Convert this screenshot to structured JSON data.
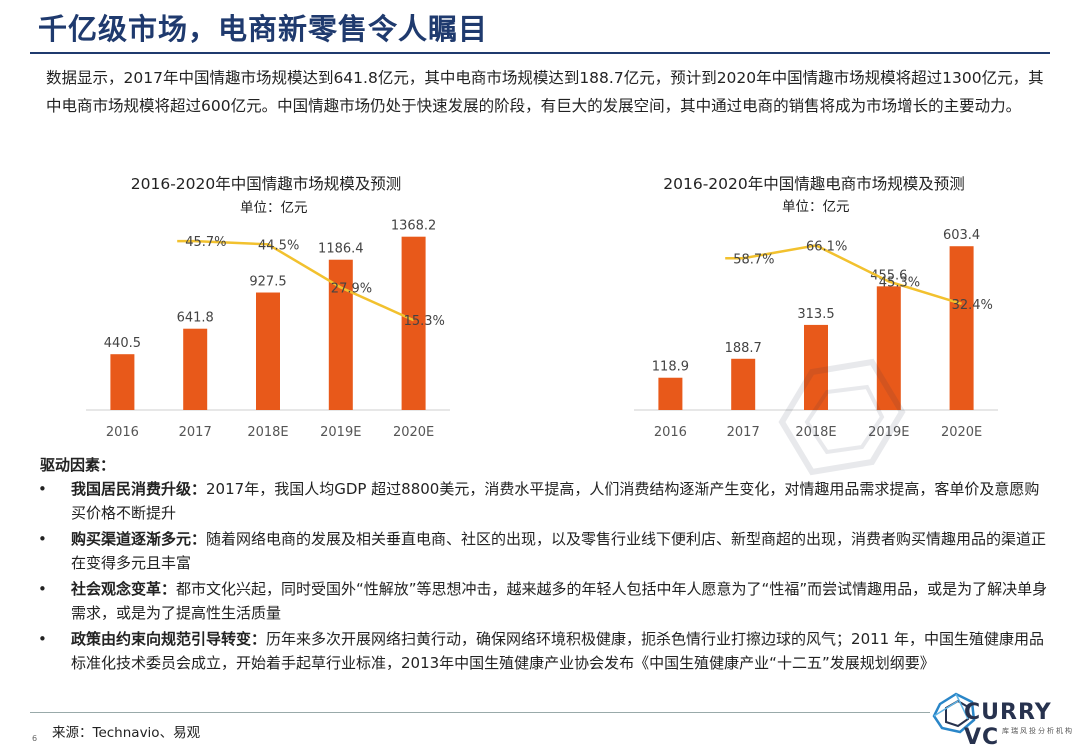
{
  "page": {
    "title": "千亿级市场，电商新零售令人瞩目",
    "intro": "数据显示，2017年中国情趣市场规模达到641.8亿元，其中电商市场规模达到188.7亿元，预计到2020年中国情趣市场规模将超过1300亿元，其中电商市场规模将超过600亿元。中国情趣市场仍处于快速发展的阶段，有巨大的发展空间，其中通过电商的销售将成为市场增长的主要动力。",
    "drivers_heading": "驱动因素：",
    "drivers": [
      {
        "bullet": "•",
        "title": "我国居民消费升级：",
        "text": "2017年，我国人均GDP 超过8800美元，消费水平提高，人们消费结构逐渐产生变化，对情趣用品需求提高，客单价及意愿购买价格不断提升"
      },
      {
        "bullet": "•",
        "title": "购买渠道逐渐多元：",
        "text": "随着网络电商的发展及相关垂直电商、社区的出现，以及零售行业线下便利店、新型商超的出现，消费者购买情趣用品的渠道正在变得多元且丰富"
      },
      {
        "bullet": "•",
        "title": "社会观念变革：",
        "text": "都市文化兴起，同时受国外“性解放”等思想冲击，越来越多的年轻人包括中年人愿意为了“性福”而尝试情趣用品，或是为了解决单身需求，或是为了提高性生活质量"
      },
      {
        "bullet": "•",
        "title": "政策由约束向规范引导转变：",
        "text": "历年来多次开展网络扫黄行动，确保网络环境积极健康，扼杀色情行业打擦边球的风气；2011 年，中国生殖健康用品标准化技术委员会成立，开始着手起草行业标准，2013年中国生殖健康产业协会发布《中国生殖健康产业“十二五”发展规划纲要》"
      }
    ],
    "source": "来源：Technavio、易观",
    "page_number": "6",
    "logo_text": "CURRY VC",
    "logo_sub": "库瑞风投分析机构"
  },
  "colors": {
    "bar": "#e8591a",
    "line": "#f2c12e",
    "title": "#1f3a6e"
  },
  "chart_data": [
    {
      "type": "bar",
      "title": "2016-2020年中国情趣市场规模及预测",
      "unit": "单位：亿元",
      "categories": [
        "2016",
        "2017",
        "2018E",
        "2019E",
        "2020E"
      ],
      "values": [
        440.5,
        641.8,
        927.5,
        1186.4,
        1368.2
      ],
      "value_labels": [
        "440.5",
        "641.8",
        "927.5",
        "1186.4",
        "1368.2"
      ],
      "growth": [
        null,
        45.7,
        44.5,
        27.9,
        15.3
      ],
      "growth_labels": [
        "",
        "45.7%",
        "44.5%",
        "27.9%",
        "15.3%"
      ],
      "ylim": [
        0,
        1500
      ],
      "growth_range": [
        0,
        50
      ],
      "grid": false,
      "legend": "none"
    },
    {
      "type": "bar",
      "title": "2016-2020年中国情趣电商市场规模及预测",
      "unit": "单位：亿元",
      "categories": [
        "2016",
        "2017",
        "2018E",
        "2019E",
        "2020E"
      ],
      "values": [
        118.9,
        188.7,
        313.5,
        455.6,
        603.4
      ],
      "value_labels": [
        "118.9",
        "188.7",
        "313.5",
        "455.6",
        "603.4"
      ],
      "growth": [
        null,
        58.7,
        66.1,
        45.3,
        32.4
      ],
      "growth_labels": [
        "",
        "58.7%",
        "66.1%",
        "45.3%",
        "32.4%"
      ],
      "ylim": [
        0,
        700
      ],
      "growth_range": [
        0,
        75
      ],
      "grid": false,
      "legend": "none"
    }
  ]
}
